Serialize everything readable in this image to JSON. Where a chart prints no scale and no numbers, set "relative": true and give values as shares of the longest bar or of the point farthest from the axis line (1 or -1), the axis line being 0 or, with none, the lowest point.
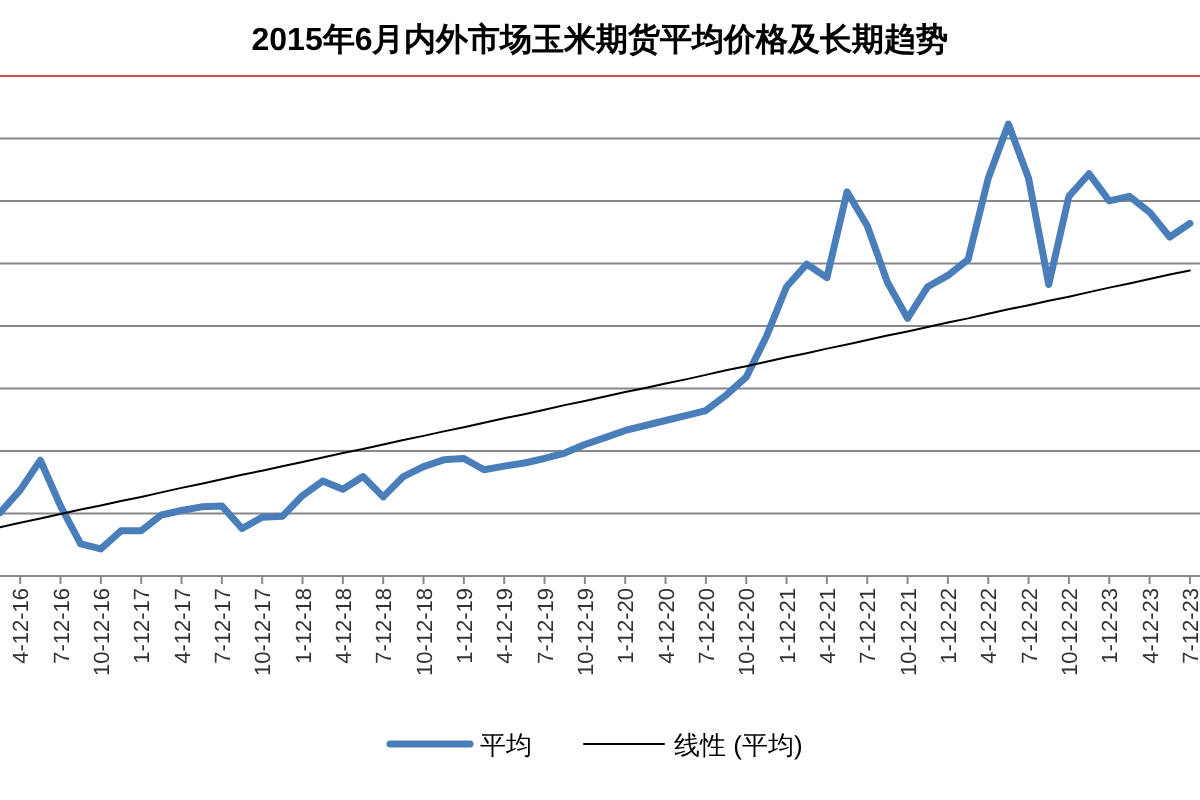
{
  "chart_data": {
    "type": "line",
    "title": "2015年6月内外市场玉米期货平均价格及长期趋势",
    "relative": true,
    "grid": "y",
    "legend": "bottom",
    "marker": "none",
    "categories": [
      null,
      "4-12-16",
      null,
      "7-12-16",
      null,
      "10-12-16",
      null,
      "1-12-17",
      null,
      "4-12-17",
      null,
      "7-12-17",
      null,
      "10-12-17",
      null,
      "1-12-18",
      null,
      "4-12-18",
      null,
      "7-12-18",
      null,
      "10-12-18",
      null,
      "1-12-19",
      null,
      "4-12-19",
      null,
      "7-12-19",
      null,
      "10-12-19",
      null,
      "1-12-20",
      null,
      "4-12-20",
      null,
      "7-12-20",
      null,
      "10-12-20",
      null,
      "1-12-21",
      null,
      "4-12-21",
      null,
      "7-12-21",
      null,
      "10-12-21",
      null,
      "1-12-22",
      null,
      "4-12-22",
      null,
      "7-12-22",
      null,
      "10-12-22",
      null,
      "1-12-23",
      null,
      "4-12-23",
      null,
      "7-12-23"
    ],
    "series": [
      {
        "name": "平均",
        "color": "#4a7ebb",
        "line_style": "solid",
        "values": [
          0.14,
          0.19,
          0.256,
          0.155,
          0.071,
          0.06,
          0.1,
          0.1,
          0.135,
          0.145,
          0.153,
          0.155,
          0.105,
          0.13,
          0.132,
          0.178,
          0.21,
          0.192,
          0.22,
          0.175,
          0.22,
          0.242,
          0.257,
          0.26,
          0.235,
          0.243,
          0.25,
          0.26,
          0.272,
          0.291,
          0.306,
          0.322,
          0.333,
          0.344,
          0.355,
          0.366,
          0.4,
          0.44,
          0.53,
          0.64,
          0.69,
          0.66,
          0.85,
          0.775,
          0.65,
          0.57,
          0.64,
          0.665,
          0.7,
          0.88,
          1,
          0.88,
          0.645,
          0.84,
          0.89,
          0.83,
          0.84,
          0.805,
          0.75,
          0.78
        ]
      },
      {
        "name": "线性 (平均)",
        "type": "line",
        "color": "#000000",
        "line_style": "solid",
        "values": [
          0.108,
          0.118,
          0.127,
          0.137,
          0.147,
          0.156,
          0.166,
          0.175,
          0.185,
          0.195,
          0.204,
          0.214,
          0.224,
          0.233,
          0.243,
          0.252,
          0.262,
          0.272,
          0.281,
          0.291,
          0.301,
          0.31,
          0.32,
          0.329,
          0.339,
          0.349,
          0.358,
          0.368,
          0.378,
          0.387,
          0.397,
          0.407,
          0.416,
          0.426,
          0.435,
          0.445,
          0.455,
          0.464,
          0.474,
          0.484,
          0.493,
          0.503,
          0.512,
          0.522,
          0.532,
          0.541,
          0.551,
          0.561,
          0.57,
          0.58,
          0.59,
          0.599,
          0.609,
          0.618,
          0.628,
          0.638,
          0.647,
          0.657,
          0.667,
          0.676
        ]
      }
    ]
  }
}
